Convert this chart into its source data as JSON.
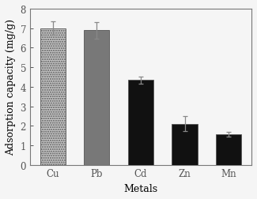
{
  "categories": [
    "Cu",
    "Pb",
    "Cd",
    "Zn",
    "Mn"
  ],
  "values": [
    7.0,
    6.9,
    4.35,
    2.1,
    1.55
  ],
  "errors": [
    0.35,
    0.42,
    0.18,
    0.38,
    0.12
  ],
  "bar_colors": [
    "#c8c8c8",
    "#787878",
    "#111111",
    "#111111",
    "#111111"
  ],
  "hatches": [
    "......",
    null,
    null,
    null,
    null
  ],
  "ylabel": "Adsorption capacity (mg/g)",
  "xlabel": "Metals",
  "ylim": [
    0,
    8
  ],
  "yticks": [
    0,
    1,
    2,
    3,
    4,
    5,
    6,
    7,
    8
  ],
  "background_color": "#f5f5f5",
  "bar_edge_color": "#555555",
  "error_color": "#888888",
  "label_fontsize": 9,
  "tick_fontsize": 8.5
}
